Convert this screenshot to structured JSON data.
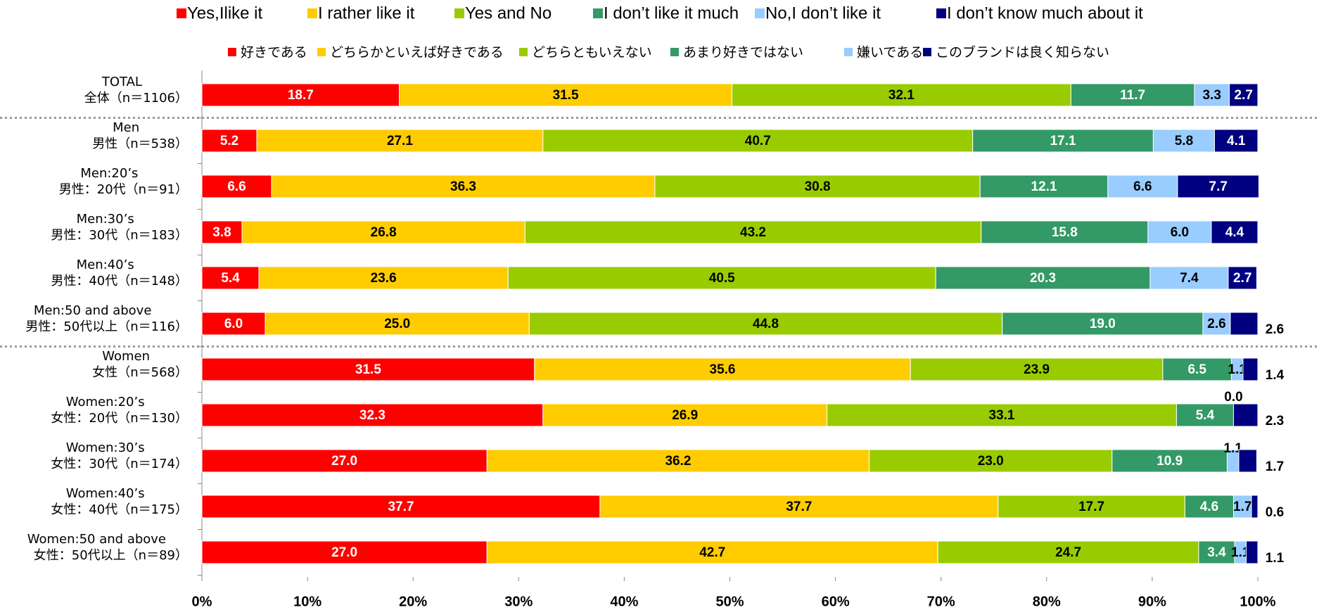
{
  "chart_data": {
    "type": "stacked-barh",
    "categories": [
      {
        "en": "TOTAL",
        "ja": "全体（n＝1106）"
      },
      {
        "en": "Men",
        "ja": "男性（n＝538）"
      },
      {
        "en": "Men:20’s",
        "ja": "男性：20代（n＝91）"
      },
      {
        "en": "Men:30’s",
        "ja": "男性：30代（n＝183）"
      },
      {
        "en": "Men:40’s",
        "ja": "男性：40代（n＝148）"
      },
      {
        "en": "Men:50 and above",
        "ja": "男性：50代以上（n＝116）"
      },
      {
        "en": "Women",
        "ja": "女性（n＝568）"
      },
      {
        "en": "Women:20’s",
        "ja": "女性：20代（n＝130）"
      },
      {
        "en": "Women:30’s",
        "ja": "女性：30代（n＝174）"
      },
      {
        "en": "Women:40’s",
        "ja": "女性：40代（n＝175）"
      },
      {
        "en": "Women:50 and above",
        "ja": "女性：50代以上（n＝89）"
      }
    ],
    "series": [
      {
        "name": "Yes,Ilike it",
        "name_ja": "好きである",
        "color": "#ff0000",
        "values": [
          18.7,
          5.2,
          6.6,
          3.8,
          5.4,
          6.0,
          31.5,
          32.3,
          27.0,
          37.7,
          27.0
        ],
        "value_labels": [
          "18.7",
          "5.2",
          "6.6",
          "3.8",
          "5.4",
          "6.0",
          "31.5",
          "32.3",
          "27.0",
          "37.7",
          "27.0"
        ]
      },
      {
        "name": "I rather like it",
        "name_ja": "どちらかといえば好きである",
        "color": "#ffcc00",
        "values": [
          31.5,
          27.1,
          36.3,
          26.8,
          23.6,
          25.0,
          35.6,
          26.9,
          36.2,
          37.7,
          42.7
        ],
        "value_labels": [
          "31.5",
          "27.1",
          "36.3",
          "26.8",
          "23.6",
          "25.0",
          "35.6",
          "26.9",
          "36.2",
          "37.7",
          "42.7"
        ]
      },
      {
        "name": "Yes and No",
        "name_ja": "どちらともいえない",
        "color": "#99cc00",
        "values": [
          32.1,
          40.7,
          30.8,
          43.2,
          40.5,
          44.8,
          23.9,
          33.1,
          23.0,
          17.7,
          24.7
        ],
        "value_labels": [
          "32.1",
          "40.7",
          "30.8",
          "43.2",
          "40.5",
          "44.8",
          "23.9",
          "33.1",
          "23.0",
          "17.7",
          "24.7"
        ]
      },
      {
        "name": "I don’t like it much",
        "name_ja": "あまり好きではない",
        "color": "#339966",
        "values": [
          11.7,
          17.1,
          12.1,
          15.8,
          20.3,
          19.0,
          6.5,
          5.4,
          10.9,
          4.6,
          3.4
        ],
        "value_labels": [
          "11.7",
          "17.1",
          "12.1",
          "15.8",
          "20.3",
          "19.0",
          "6.5",
          "5.4",
          "10.9",
          "4.6",
          "3.4"
        ]
      },
      {
        "name": "No,I don’t like it",
        "name_ja": "嫌いである",
        "color": "#99ccff",
        "values": [
          3.3,
          5.8,
          6.6,
          6.0,
          7.4,
          2.6,
          1.1,
          0.0,
          1.1,
          1.7,
          1.1
        ],
        "value_labels": [
          "3.3",
          "5.8",
          "6.6",
          "6.0",
          "7.4",
          "2.6",
          "1.1",
          "0.0",
          "1.1",
          "1.7",
          "1.1"
        ]
      },
      {
        "name": "I don’t know much about it",
        "name_ja": "このブランドは良く知らない",
        "color": "#000080",
        "values": [
          2.7,
          4.1,
          7.7,
          4.4,
          2.7,
          2.6,
          1.4,
          2.3,
          1.7,
          0.6,
          1.1
        ],
        "value_labels": [
          "2.7",
          "4.1",
          "7.7",
          "4.4",
          "2.7",
          "2.6",
          "1.4",
          "2.3",
          "1.7",
          "0.6",
          "1.1"
        ]
      }
    ],
    "xlim": [
      0,
      100
    ],
    "xticks": [
      {
        "value": 0,
        "label": "0%"
      },
      {
        "value": 10,
        "label": "10%"
      },
      {
        "value": 20,
        "label": "20%"
      },
      {
        "value": 30,
        "label": "30%"
      },
      {
        "value": 40,
        "label": "40%"
      },
      {
        "value": 50,
        "label": "50%"
      },
      {
        "value": 60,
        "label": "60%"
      },
      {
        "value": 70,
        "label": "70%"
      },
      {
        "value": 80,
        "label": "80%"
      },
      {
        "value": 90,
        "label": "90%"
      },
      {
        "value": 100,
        "label": "100%"
      }
    ]
  }
}
